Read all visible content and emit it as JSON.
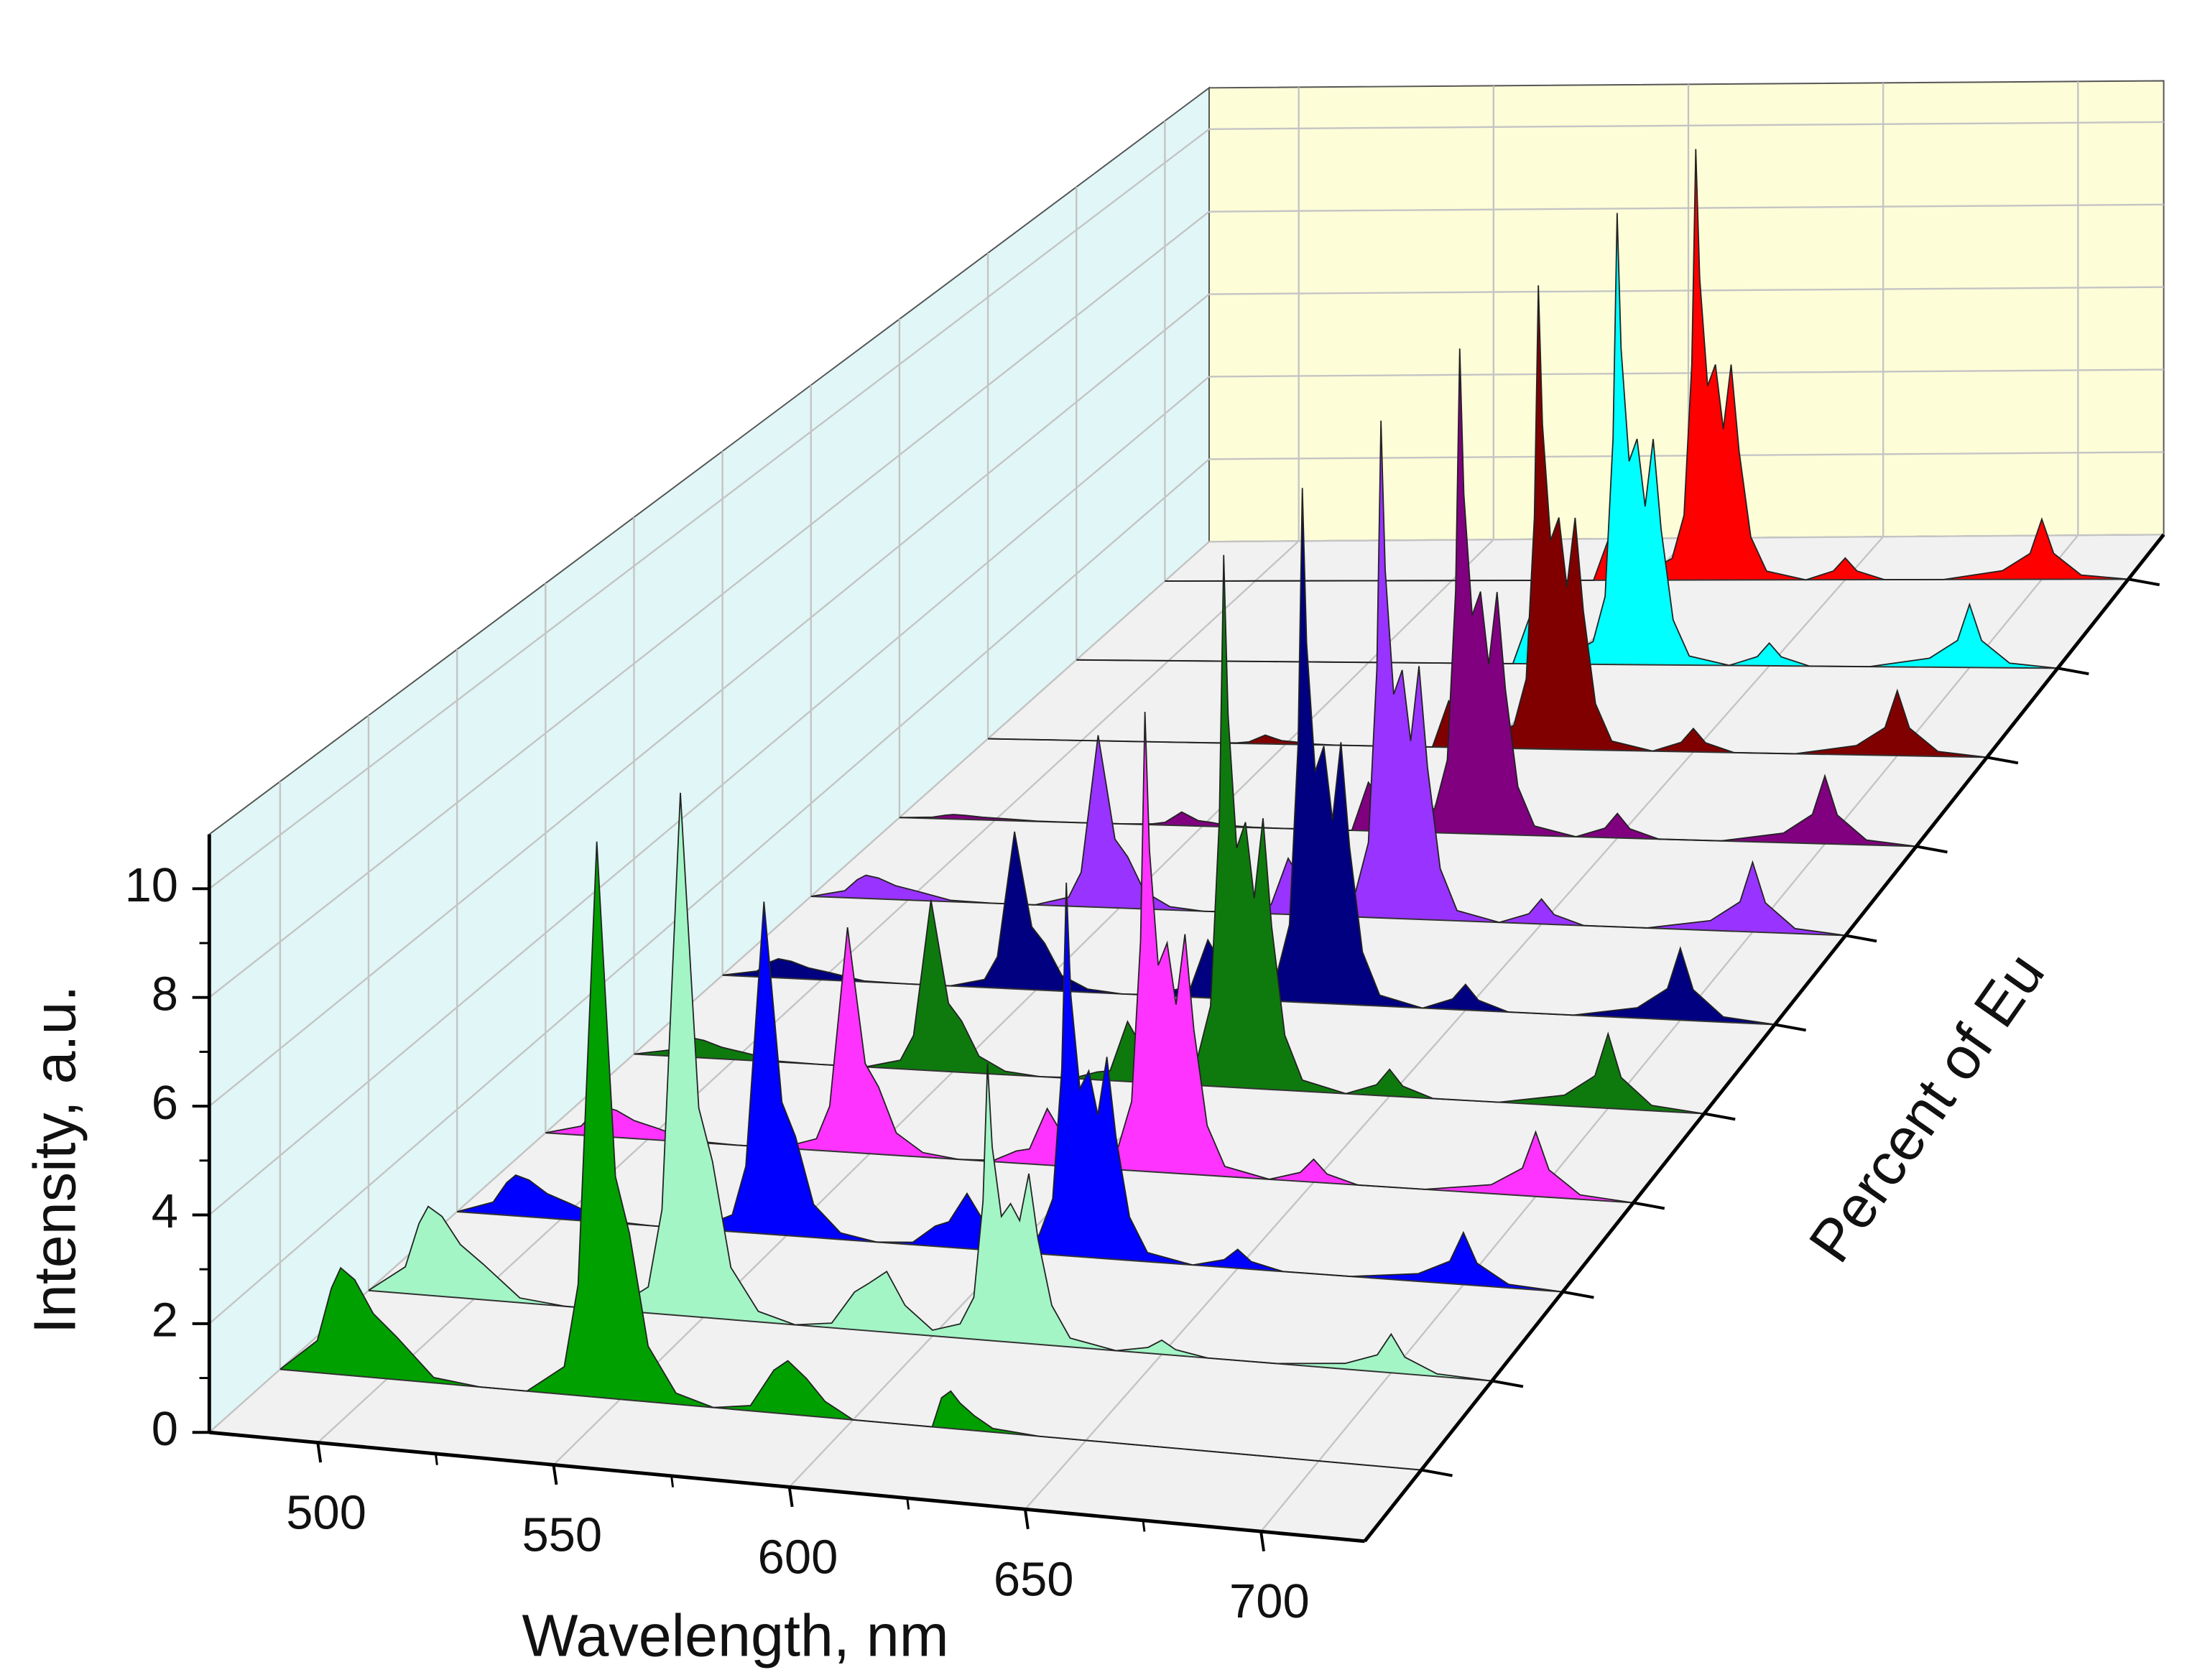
{
  "chart_data": {
    "type": "area",
    "xlabel": "Wavelength, nm",
    "ylabel": "Intensity, a.u.",
    "depth_label": "Percent of Eu",
    "xlim": [
      477,
      722
    ],
    "xticks": [
      500,
      550,
      600,
      650,
      700
    ],
    "ylim": [
      0,
      11
    ],
    "yticks": [
      0,
      2,
      4,
      6,
      8,
      10
    ],
    "grid": true,
    "x": [
      477,
      485,
      488,
      490,
      493,
      497,
      502,
      510,
      520,
      530,
      538,
      541,
      543,
      545,
      547,
      549,
      552,
      556,
      562,
      570,
      578,
      583,
      586,
      590,
      594,
      600,
      606,
      609,
      611,
      612,
      613,
      615,
      617,
      619,
      621,
      623,
      626,
      630,
      640,
      647,
      650,
      653,
      660,
      675,
      690,
      697,
      700,
      703,
      710,
      722
    ],
    "series": [
      {
        "color": "#00a000",
        "values": [
          0,
          0.6,
          1.6,
          2,
          1.8,
          1.2,
          0.8,
          0.1,
          0,
          0,
          0.52,
          2.08,
          6.24,
          10.4,
          7.28,
          4.16,
          3.12,
          1.04,
          0.21,
          0,
          0.1,
          0.8,
          1,
          0.7,
          0.3,
          0,
          0,
          0,
          0,
          0,
          0,
          0,
          0,
          0.56,
          0.7,
          0.49,
          0.28,
          0.07,
          0,
          0,
          0,
          0,
          0,
          0,
          0,
          0,
          0,
          0,
          0,
          0
        ]
      },
      {
        "color": "#a3f5c6",
        "values": [
          0,
          0.51,
          1.36,
          1.7,
          1.53,
          1.02,
          0.68,
          0.09,
          0,
          0,
          0.5,
          2,
          6,
          10,
          7,
          4,
          3,
          1,
          0.2,
          0,
          0.09,
          0.72,
          0.9,
          1.16,
          0.54,
          0.11,
          0.27,
          0.8,
          2.65,
          5.3,
          3.71,
          2.39,
          2.65,
          2.34,
          3.25,
          2.01,
          0.77,
          0.17,
          0,
          0.11,
          0.27,
          0.11,
          0,
          0,
          0.11,
          0.32,
          0.74,
          0.32,
          0.05,
          0
        ]
      },
      {
        "color": "#0000ff",
        "values": [
          0,
          0.24,
          0.64,
          0.8,
          0.72,
          0.48,
          0.32,
          0.04,
          0,
          0,
          0.33,
          1.3,
          3.9,
          6.5,
          4.55,
          2.6,
          1.95,
          0.65,
          0.13,
          0,
          0.05,
          0.4,
          0.5,
          1.08,
          0.52,
          0.15,
          0.37,
          1.1,
          3.65,
          7.3,
          5.11,
          3.29,
          3.65,
          2.8,
          3.95,
          2.4,
          0.85,
          0.18,
          0,
          0.15,
          0.37,
          0.15,
          0,
          0,
          0.15,
          0.44,
          1.02,
          0.44,
          0.07,
          0
        ]
      },
      {
        "color": "#ff33ff",
        "values": [
          0,
          0.18,
          0.48,
          0.6,
          0.54,
          0.36,
          0.24,
          0.03,
          0,
          0,
          0.23,
          0.9,
          2.7,
          4.5,
          3.15,
          1.8,
          1.35,
          0.45,
          0.09,
          0,
          0.03,
          0.24,
          0.3,
          1.13,
          0.55,
          0.18,
          0.46,
          1.38,
          4.6,
          9.2,
          6.44,
          4.14,
          4.6,
          3.38,
          4.8,
          2.9,
          1,
          0.2,
          0,
          0.18,
          0.46,
          0.18,
          0,
          0,
          0.18,
          0.55,
          1.29,
          0.55,
          0.09,
          0
        ]
      },
      {
        "color": "#0e7a0e",
        "values": [
          0,
          0.12,
          0.32,
          0.4,
          0.36,
          0.24,
          0.16,
          0.02,
          0,
          0,
          0.18,
          0.7,
          2.1,
          3.5,
          2.45,
          1.4,
          1.05,
          0.35,
          0.07,
          0,
          0.02,
          0.16,
          0.2,
          1.23,
          0.61,
          0.22,
          0.55,
          1.64,
          5.45,
          10.9,
          7.63,
          4.91,
          5.45,
          3.9,
          5.55,
          3.34,
          1.13,
          0.23,
          0,
          0.22,
          0.55,
          0.22,
          0,
          0,
          0.22,
          0.65,
          1.53,
          0.65,
          0.11,
          0
        ]
      },
      {
        "color": "#000080",
        "values": [
          0,
          0.12,
          0.32,
          0.4,
          0.36,
          0.24,
          0.16,
          0.02,
          0,
          0,
          0.17,
          0.66,
          1.98,
          3.3,
          2.31,
          1.32,
          0.99,
          0.33,
          0.07,
          0,
          0.02,
          0.16,
          0.2,
          1.22,
          0.6,
          0.22,
          0.54,
          1.62,
          5.4,
          10.8,
          7.56,
          4.86,
          5.4,
          3.86,
          5.5,
          3.31,
          1.12,
          0.23,
          0,
          0.22,
          0.54,
          0.22,
          0,
          0,
          0.22,
          0.65,
          1.51,
          0.65,
          0.11,
          0
        ]
      },
      {
        "color": "#9933ff",
        "values": [
          0,
          0.15,
          0.4,
          0.5,
          0.45,
          0.3,
          0.2,
          0.03,
          0,
          0,
          0.19,
          0.74,
          2.22,
          3.7,
          2.59,
          1.48,
          1.11,
          0.37,
          0.07,
          0,
          0.02,
          0.16,
          0.2,
          1.21,
          0.6,
          0.21,
          0.54,
          1.61,
          5.35,
          10.7,
          7.49,
          4.82,
          5.35,
          3.83,
          5.45,
          3.28,
          1.11,
          0.22,
          0,
          0.21,
          0.54,
          0.21,
          0,
          0,
          0.21,
          0.64,
          1.5,
          0.64,
          0.11,
          0
        ]
      },
      {
        "color": "#800080",
        "values": [
          0,
          0.03,
          0.08,
          0.1,
          0.09,
          0.06,
          0.04,
          0.01,
          0,
          0,
          0.02,
          0.06,
          0.18,
          0.3,
          0.21,
          0.12,
          0.09,
          0.03,
          0.01,
          0,
          0,
          0,
          0,
          1.07,
          0.54,
          0.21,
          0.54,
          1.61,
          5.35,
          10.7,
          7.49,
          4.82,
          5.35,
          3.75,
          5.35,
          3.21,
          1.07,
          0.21,
          0,
          0.21,
          0.54,
          0.21,
          0,
          0,
          0.21,
          0.64,
          1.5,
          0.64,
          0.11,
          0
        ]
      },
      {
        "color": "#800000",
        "values": [
          0,
          0,
          0,
          0,
          0,
          0,
          0,
          0,
          0,
          0,
          0.01,
          0.04,
          0.12,
          0.2,
          0.14,
          0.08,
          0.06,
          0.02,
          0,
          0,
          0,
          0,
          0,
          1.05,
          0.53,
          0.21,
          0.53,
          1.58,
          5.25,
          10.5,
          7.35,
          4.73,
          5.25,
          3.68,
          5.25,
          3.15,
          1.05,
          0.21,
          0,
          0.21,
          0.53,
          0.21,
          0,
          0,
          0.21,
          0.63,
          1.47,
          0.63,
          0.11,
          0
        ]
      },
      {
        "color": "#00ffff",
        "values": [
          0,
          0,
          0,
          0,
          0,
          0,
          0,
          0,
          0,
          0,
          0,
          0,
          0,
          0,
          0,
          0,
          0,
          0,
          0,
          0,
          0,
          0,
          0,
          1.05,
          0.53,
          0.21,
          0.53,
          1.58,
          5.25,
          10.5,
          7.35,
          4.73,
          5.25,
          3.68,
          5.25,
          3.15,
          1.05,
          0.21,
          0,
          0.21,
          0.53,
          0.21,
          0,
          0,
          0.21,
          0.63,
          1.47,
          0.63,
          0.11,
          0
        ]
      },
      {
        "color": "#ff0000",
        "values": [
          0,
          0,
          0,
          0,
          0,
          0,
          0,
          0,
          0,
          0,
          0,
          0,
          0,
          0,
          0,
          0,
          0,
          0,
          0,
          0,
          0,
          0,
          0,
          1.03,
          0.52,
          0.21,
          0.52,
          1.55,
          5.15,
          10.3,
          7.21,
          4.64,
          5.15,
          3.61,
          5.15,
          3.09,
          1.03,
          0.21,
          0,
          0.21,
          0.52,
          0.21,
          0,
          0,
          0.21,
          0.62,
          1.44,
          0.62,
          0.1,
          0
        ]
      }
    ]
  }
}
